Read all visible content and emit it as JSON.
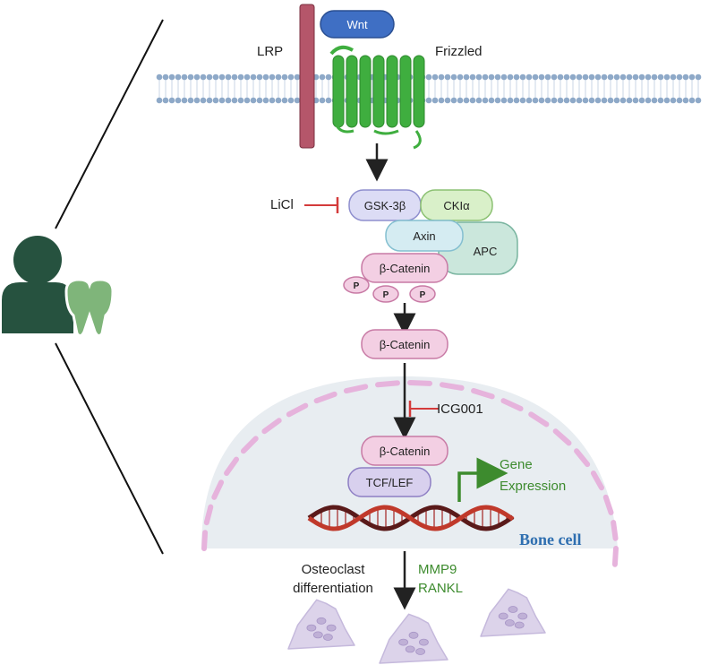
{
  "labels": {
    "wnt": "Wnt",
    "lrp": "LRP",
    "frizzled": "Frizzled",
    "licl": "LiCl",
    "gsk3b": "GSK-3β",
    "ckia": "CKIα",
    "axin": "Axin",
    "apc": "APC",
    "bcat_complex": "β-Catenin",
    "phospho": "P",
    "bcat_free": "β-Catenin",
    "icg001": "ICG001",
    "bcat_nuclear": "β-Catenin",
    "tcf_lef": "TCF/LEF",
    "gene_expression_1": "Gene",
    "gene_expression_2": "Expression",
    "bone_cell": "Bone cell",
    "osteoclast_1": "Osteoclast",
    "osteoclast_2": "differentiation",
    "mmp9": "MMP9",
    "rankl": "RANKL"
  },
  "colors": {
    "membrane": "#8ea9c8",
    "lrp": "#b5566a",
    "wnt": "#3f6fc4",
    "frizzled": "#3fae3f",
    "inhibit": "#d43b3b",
    "gsk": "#dcdcf5",
    "ckia": "#d9f0c9",
    "axin": "#d5ecf2",
    "apc": "#cbe7dc",
    "catenin": "#f3cfe3",
    "tcf": "#d8d0ee",
    "nucleus": "#e8edf1",
    "envelope": "#e6b3dc",
    "dna_a": "#c0392b",
    "dna_b": "#5a1a1a",
    "gene_arrow": "#3d8b2e",
    "bone_text": "#2f6fb0",
    "osteoclast": "#dcd3ea",
    "person": "#26523f",
    "tooth": "#7fb57a"
  },
  "icons": [
    "person-icon",
    "tooth-icon"
  ]
}
